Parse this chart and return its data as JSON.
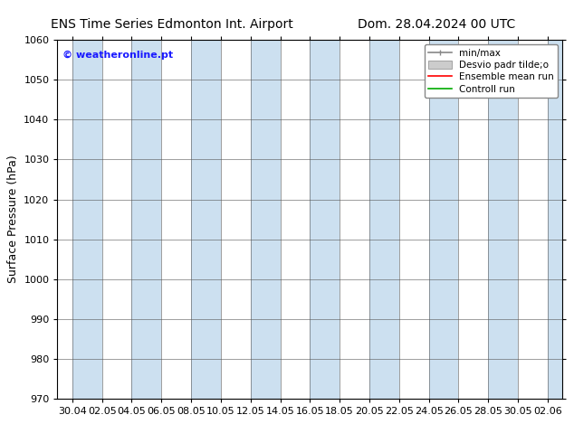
{
  "title_left": "ENS Time Series Edmonton Int. Airport",
  "title_right": "Dom. 28.04.2024 00 UTC",
  "ylabel": "Surface Pressure (hPa)",
  "watermark": "© weatheronline.pt",
  "watermark_color": "#1a1aff",
  "ylim": [
    970,
    1060
  ],
  "yticks": [
    970,
    980,
    990,
    1000,
    1010,
    1020,
    1030,
    1040,
    1050,
    1060
  ],
  "xtick_labels": [
    "30.04",
    "02.05",
    "04.05",
    "06.05",
    "08.05",
    "10.05",
    "12.05",
    "14.05",
    "16.05",
    "18.05",
    "20.05",
    "22.05",
    "24.05",
    "26.05",
    "28.05",
    "30.05",
    "02.06"
  ],
  "background_color": "#ffffff",
  "plot_bg_color": "#ffffff",
  "shaded_band_color": "#cce0f0",
  "shaded_band_alpha": 1.0,
  "legend_entries": [
    "min/max",
    "Desvio padr tilde;o",
    "Ensemble mean run",
    "Controll run"
  ],
  "title_fontsize": 10,
  "axis_label_fontsize": 9,
  "tick_fontsize": 8,
  "watermark_fontsize": 8
}
